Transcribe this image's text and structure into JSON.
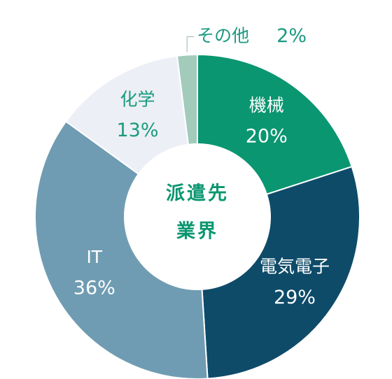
{
  "chart_data": {
    "type": "donut",
    "center_label": [
      "派遣先",
      "業界"
    ],
    "categories": [
      "機械",
      "電気電子",
      "IT",
      "化学",
      "その他"
    ],
    "values": [
      20,
      29,
      36,
      13,
      2
    ],
    "value_labels": [
      "20%",
      "29%",
      "36%",
      "13%",
      "2%"
    ],
    "colors": [
      "#0a9670",
      "#0e4b69",
      "#6f9cb2",
      "#eceff5",
      "#a2cbbb"
    ],
    "label_colors": [
      "#ffffff",
      "#ffffff",
      "#ffffff",
      "#1a9a80",
      "#1a9a80"
    ]
  }
}
